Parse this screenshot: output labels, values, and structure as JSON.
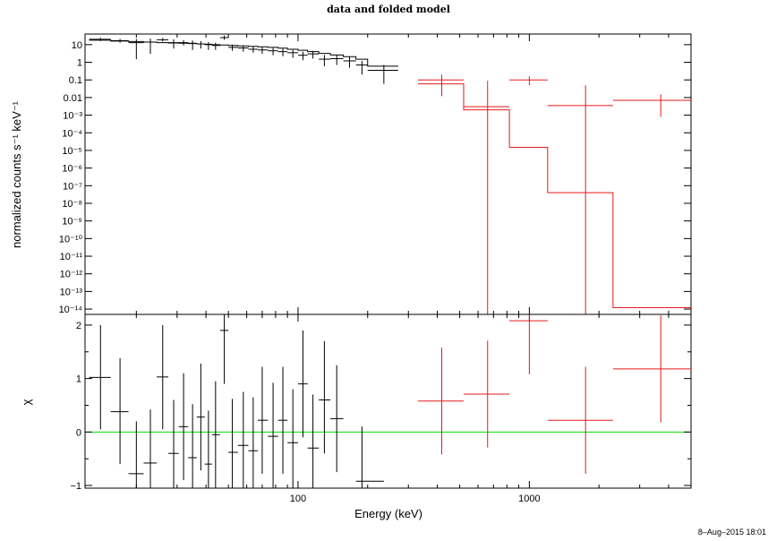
{
  "chart_data": [
    {
      "type": "scatter",
      "title": "data and folded model",
      "xlabel": "",
      "ylabel": "normalized counts s⁻¹ keV⁻¹",
      "xscale": "log",
      "yscale": "log",
      "xlim": [
        12,
        5000
      ],
      "ylim": [
        5e-15,
        40
      ],
      "ytick_exponents": [
        1,
        0,
        -1,
        -2,
        -3,
        -4,
        -5,
        -6,
        -7,
        -8,
        -9,
        -10,
        -11,
        -12,
        -13,
        -14
      ],
      "ytick_labels": [
        "10",
        "1",
        "0.1",
        "0.01",
        "10⁻³",
        "10⁻⁴",
        "10⁻⁵",
        "10⁻⁶",
        "10⁻⁷",
        "10⁻⁸",
        "10⁻⁹",
        "10⁻¹⁰",
        "10⁻¹¹",
        "10⁻¹²",
        "10⁻¹³",
        "10⁻¹⁴"
      ],
      "series": [
        {
          "color": "#000000",
          "points": [
            {
              "x": 14,
              "xlo": 12.5,
              "xhi": 15.5,
              "y": 20,
              "ylo": 16,
              "yhi": 25
            },
            {
              "x": 17,
              "xlo": 15.5,
              "xhi": 18.5,
              "y": 17,
              "ylo": 13,
              "yhi": 21
            },
            {
              "x": 20,
              "xlo": 18.5,
              "xhi": 21.5,
              "y": 13,
              "ylo": 1.5,
              "yhi": 21
            },
            {
              "x": 23,
              "xlo": 21.5,
              "xhi": 24.5,
              "y": 14,
              "ylo": 3,
              "yhi": 22
            },
            {
              "x": 26,
              "xlo": 24.5,
              "xhi": 27.5,
              "y": 19,
              "ylo": 15,
              "yhi": 24
            },
            {
              "x": 29,
              "xlo": 27.5,
              "xhi": 30.5,
              "y": 13,
              "ylo": 6,
              "yhi": 20
            },
            {
              "x": 32,
              "xlo": 30.5,
              "xhi": 33.5,
              "y": 13,
              "ylo": 9,
              "yhi": 18
            },
            {
              "x": 35,
              "xlo": 33.5,
              "xhi": 36.5,
              "y": 12,
              "ylo": 5,
              "yhi": 17
            },
            {
              "x": 38,
              "xlo": 36.5,
              "xhi": 39.5,
              "y": 11,
              "ylo": 6,
              "yhi": 16
            },
            {
              "x": 41,
              "xlo": 39.5,
              "xhi": 42.5,
              "y": 10,
              "ylo": 5,
              "yhi": 14
            },
            {
              "x": 44,
              "xlo": 42.5,
              "xhi": 46,
              "y": 9,
              "ylo": 5,
              "yhi": 13
            },
            {
              "x": 48,
              "xlo": 46,
              "xhi": 50,
              "y": 25,
              "ylo": 19,
              "yhi": 33
            },
            {
              "x": 52,
              "xlo": 50,
              "xhi": 55,
              "y": 7,
              "ylo": 4.5,
              "yhi": 10
            },
            {
              "x": 58,
              "xlo": 55,
              "xhi": 61,
              "y": 6.5,
              "ylo": 4,
              "yhi": 9
            },
            {
              "x": 64,
              "xlo": 61,
              "xhi": 67,
              "y": 5.5,
              "ylo": 3.5,
              "yhi": 8
            },
            {
              "x": 70,
              "xlo": 67,
              "xhi": 74,
              "y": 5,
              "ylo": 3,
              "yhi": 7.5
            },
            {
              "x": 78,
              "xlo": 74,
              "xhi": 82,
              "y": 4.5,
              "ylo": 2.5,
              "yhi": 6.5
            },
            {
              "x": 86,
              "xlo": 82,
              "xhi": 90,
              "y": 4,
              "ylo": 2.2,
              "yhi": 6
            },
            {
              "x": 95,
              "xlo": 90,
              "xhi": 100,
              "y": 3.5,
              "ylo": 1.8,
              "yhi": 5
            },
            {
              "x": 105,
              "xlo": 100,
              "xhi": 110,
              "y": 2.5,
              "ylo": 1.3,
              "yhi": 4
            },
            {
              "x": 116,
              "xlo": 110,
              "xhi": 123,
              "y": 3,
              "ylo": 1.6,
              "yhi": 4.5
            },
            {
              "x": 130,
              "xlo": 123,
              "xhi": 138,
              "y": 1.5,
              "ylo": 0.6,
              "yhi": 2.6
            },
            {
              "x": 147,
              "xlo": 138,
              "xhi": 157,
              "y": 1.6,
              "ylo": 0.7,
              "yhi": 2.6
            },
            {
              "x": 167,
              "xlo": 157,
              "xhi": 178,
              "y": 1.2,
              "ylo": 0.5,
              "yhi": 2.0
            },
            {
              "x": 189,
              "xlo": 178,
              "xhi": 200,
              "y": 0.7,
              "ylo": 0.2,
              "yhi": 1.2
            },
            {
              "x": 235,
              "xlo": 200,
              "xhi": 271,
              "y": 0.35,
              "ylo": 0.06,
              "yhi": 0.7
            }
          ],
          "model_steps": [
            [
              12.5,
              18
            ],
            [
              15.5,
              16
            ],
            [
              18.5,
              15
            ],
            [
              21.5,
              14
            ],
            [
              24.5,
              13
            ],
            [
              27.5,
              12.5
            ],
            [
              30.5,
              12
            ],
            [
              33.5,
              11.5
            ],
            [
              36.5,
              11
            ],
            [
              39.5,
              10.5
            ],
            [
              42.5,
              10
            ],
            [
              46,
              9.5
            ],
            [
              50,
              9
            ],
            [
              55,
              8.5
            ],
            [
              61,
              8
            ],
            [
              67,
              7.5
            ],
            [
              74,
              7
            ],
            [
              82,
              6.3
            ],
            [
              90,
              5.5
            ],
            [
              100,
              4.8
            ],
            [
              110,
              4
            ],
            [
              123,
              3.2
            ],
            [
              138,
              2.6
            ],
            [
              157,
              2.1
            ],
            [
              178,
              1.5
            ],
            [
              200,
              0.6
            ],
            [
              271,
              0.6
            ]
          ]
        },
        {
          "color": "#e31a1c",
          "points": [
            {
              "x": 418,
              "xlo": 330,
              "xhi": 520,
              "y": 0.1,
              "ylo": 0.012,
              "yhi": 0.2
            },
            {
              "x": 660,
              "xlo": 520,
              "xhi": 820,
              "y": 0.003,
              "ylo": 3e-15,
              "yhi": 0.09
            },
            {
              "x": 1000,
              "xlo": 820,
              "xhi": 1200,
              "y": 0.1,
              "ylo": 0.05,
              "yhi": 0.16
            },
            {
              "x": 1750,
              "xlo": 1200,
              "xhi": 2300,
              "y": 0.0035,
              "ylo": 3e-15,
              "yhi": 0.05
            },
            {
              "x": 3700,
              "xlo": 2300,
              "xhi": 5000,
              "y": 0.007,
              "ylo": 0.0008,
              "yhi": 0.015
            }
          ],
          "model_steps": [
            [
              330,
              0.06
            ],
            [
              520,
              0.002
            ],
            [
              820,
              1.5e-05
            ],
            [
              1200,
              4e-08
            ],
            [
              2300,
              1.2e-14
            ],
            [
              5000,
              1.2e-14
            ]
          ]
        }
      ]
    },
    {
      "type": "scatter",
      "xlabel": "Energy (keV)",
      "ylabel": "χ",
      "xscale": "log",
      "xlim": [
        12,
        5000
      ],
      "ylim": [
        -1.05,
        2.2
      ],
      "xticks": [
        100,
        1000
      ],
      "xtick_labels": [
        "100",
        "1000"
      ],
      "yticks": [
        -1,
        0,
        1,
        2
      ],
      "ytick_labels": [
        "−1",
        "0",
        "1",
        "2"
      ],
      "zero_line_color": "#00e000",
      "series": [
        {
          "color": "#000000",
          "points": [
            {
              "x": 14,
              "xlo": 12.5,
              "xhi": 15.5,
              "y": 1.02,
              "ylo": 0.05,
              "yhi": 2.0
            },
            {
              "x": 17,
              "xlo": 15.5,
              "xhi": 18.5,
              "y": 0.38,
              "ylo": -0.6,
              "yhi": 1.38
            },
            {
              "x": 20,
              "xlo": 18.5,
              "xhi": 21.5,
              "y": -0.78,
              "ylo": -1.05,
              "yhi": 0.2
            },
            {
              "x": 23,
              "xlo": 21.5,
              "xhi": 24.5,
              "y": -0.58,
              "ylo": -1.05,
              "yhi": 0.42
            },
            {
              "x": 26,
              "xlo": 24.5,
              "xhi": 27.5,
              "y": 1.03,
              "ylo": 0.05,
              "yhi": 2.0
            },
            {
              "x": 29,
              "xlo": 27.5,
              "xhi": 30.5,
              "y": -0.4,
              "ylo": -1.05,
              "yhi": 0.6
            },
            {
              "x": 32,
              "xlo": 30.5,
              "xhi": 33.5,
              "y": 0.1,
              "ylo": -0.9,
              "yhi": 1.1
            },
            {
              "x": 35,
              "xlo": 33.5,
              "xhi": 36.5,
              "y": -0.48,
              "ylo": -1.05,
              "yhi": 0.52
            },
            {
              "x": 38,
              "xlo": 36.5,
              "xhi": 39.5,
              "y": 0.28,
              "ylo": -0.72,
              "yhi": 1.28
            },
            {
              "x": 41,
              "xlo": 39.5,
              "xhi": 42.5,
              "y": -0.6,
              "ylo": -1.05,
              "yhi": 0.4
            },
            {
              "x": 44,
              "xlo": 42.5,
              "xhi": 46,
              "y": -0.05,
              "ylo": -1.05,
              "yhi": 0.95
            },
            {
              "x": 48,
              "xlo": 46,
              "xhi": 50,
              "y": 1.9,
              "ylo": 0.9,
              "yhi": 2.2
            },
            {
              "x": 52,
              "xlo": 50,
              "xhi": 55,
              "y": -0.38,
              "ylo": -1.05,
              "yhi": 0.62
            },
            {
              "x": 58,
              "xlo": 55,
              "xhi": 61,
              "y": -0.25,
              "ylo": -1.05,
              "yhi": 0.75
            },
            {
              "x": 64,
              "xlo": 61,
              "xhi": 67,
              "y": -0.35,
              "ylo": -1.05,
              "yhi": 0.65
            },
            {
              "x": 70,
              "xlo": 67,
              "xhi": 74,
              "y": 0.22,
              "ylo": -0.78,
              "yhi": 1.22
            },
            {
              "x": 78,
              "xlo": 74,
              "xhi": 82,
              "y": -0.08,
              "ylo": -1.05,
              "yhi": 0.92
            },
            {
              "x": 86,
              "xlo": 82,
              "xhi": 90,
              "y": 0.22,
              "ylo": -0.78,
              "yhi": 1.22
            },
            {
              "x": 95,
              "xlo": 90,
              "xhi": 100,
              "y": -0.2,
              "ylo": -1.05,
              "yhi": 0.8
            },
            {
              "x": 105,
              "xlo": 100,
              "xhi": 110,
              "y": 0.9,
              "ylo": -0.1,
              "yhi": 1.9
            },
            {
              "x": 116,
              "xlo": 110,
              "xhi": 123,
              "y": -0.3,
              "ylo": -1.05,
              "yhi": 0.7
            },
            {
              "x": 130,
              "xlo": 123,
              "xhi": 138,
              "y": 0.6,
              "ylo": -0.4,
              "yhi": 1.7
            },
            {
              "x": 147,
              "xlo": 138,
              "xhi": 157,
              "y": 0.25,
              "ylo": -0.75,
              "yhi": 1.25
            },
            {
              "x": 189,
              "xlo": 178,
              "xhi": 235,
              "y": -0.92,
              "ylo": -1.05,
              "yhi": 0.1
            }
          ]
        },
        {
          "color": "#e31a1c",
          "points": [
            {
              "x": 418,
              "xlo": 330,
              "xhi": 520,
              "y": 0.58,
              "ylo": -0.42,
              "yhi": 1.58
            },
            {
              "x": 660,
              "xlo": 520,
              "xhi": 820,
              "y": 0.71,
              "ylo": -0.29,
              "yhi": 1.71
            },
            {
              "x": 1000,
              "xlo": 820,
              "xhi": 1200,
              "y": 2.08,
              "ylo": 1.08,
              "yhi": 2.2
            },
            {
              "x": 1750,
              "xlo": 1200,
              "xhi": 2300,
              "y": 0.22,
              "ylo": -0.78,
              "yhi": 1.22
            },
            {
              "x": 3700,
              "xlo": 2300,
              "xhi": 5000,
              "y": 1.18,
              "ylo": 0.18,
              "yhi": 2.18
            }
          ]
        }
      ]
    }
  ],
  "footer": {
    "timestamp": "8–Aug–2015 18:01"
  }
}
